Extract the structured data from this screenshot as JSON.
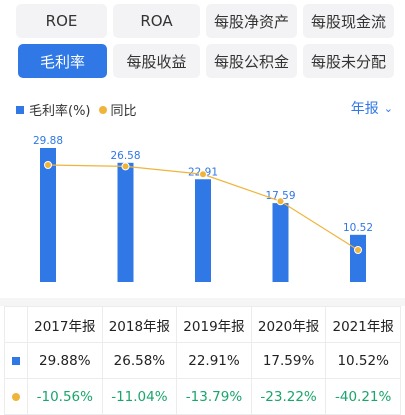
{
  "tabs": [
    {
      "label": "ROE",
      "active": false
    },
    {
      "label": "ROA",
      "active": false
    },
    {
      "label": "每股净资产",
      "active": false
    },
    {
      "label": "每股现金流",
      "active": false
    },
    {
      "label": "毛利率",
      "active": true
    },
    {
      "label": "每股收益",
      "active": false
    },
    {
      "label": "每股公积金",
      "active": false
    },
    {
      "label": "每股未分配",
      "active": false
    }
  ],
  "legend": {
    "bar_label": "毛利率(%)",
    "line_label": "同比"
  },
  "period_selector": {
    "label": "年报",
    "icon": "chevron-down-icon"
  },
  "colors": {
    "accent": "#2f78e6",
    "line": "#f0b43a",
    "negative": "#1aa56c"
  },
  "chart_data": {
    "type": "bar",
    "categories": [
      "2017年报",
      "2018年报",
      "2019年报",
      "2020年报",
      "2021年报"
    ],
    "series": [
      {
        "name": "毛利率(%)",
        "type": "bar",
        "values": [
          29.88,
          26.58,
          22.91,
          17.59,
          10.52
        ]
      },
      {
        "name": "同比",
        "type": "line",
        "values": [
          -10.56,
          -11.04,
          -13.79,
          -23.22,
          -40.21
        ]
      }
    ],
    "legend_position": "top-left",
    "grid": false
  },
  "table": {
    "headers": [
      "2017年报",
      "2018年报",
      "2019年报",
      "2020年报",
      "2021年报"
    ],
    "rows": [
      {
        "marker": "bar",
        "values": [
          "29.88%",
          "26.58%",
          "22.91%",
          "17.59%",
          "10.52%"
        ]
      },
      {
        "marker": "line",
        "values": [
          "-10.56%",
          "-11.04%",
          "-13.79%",
          "-23.22%",
          "-40.21%"
        ]
      }
    ]
  }
}
